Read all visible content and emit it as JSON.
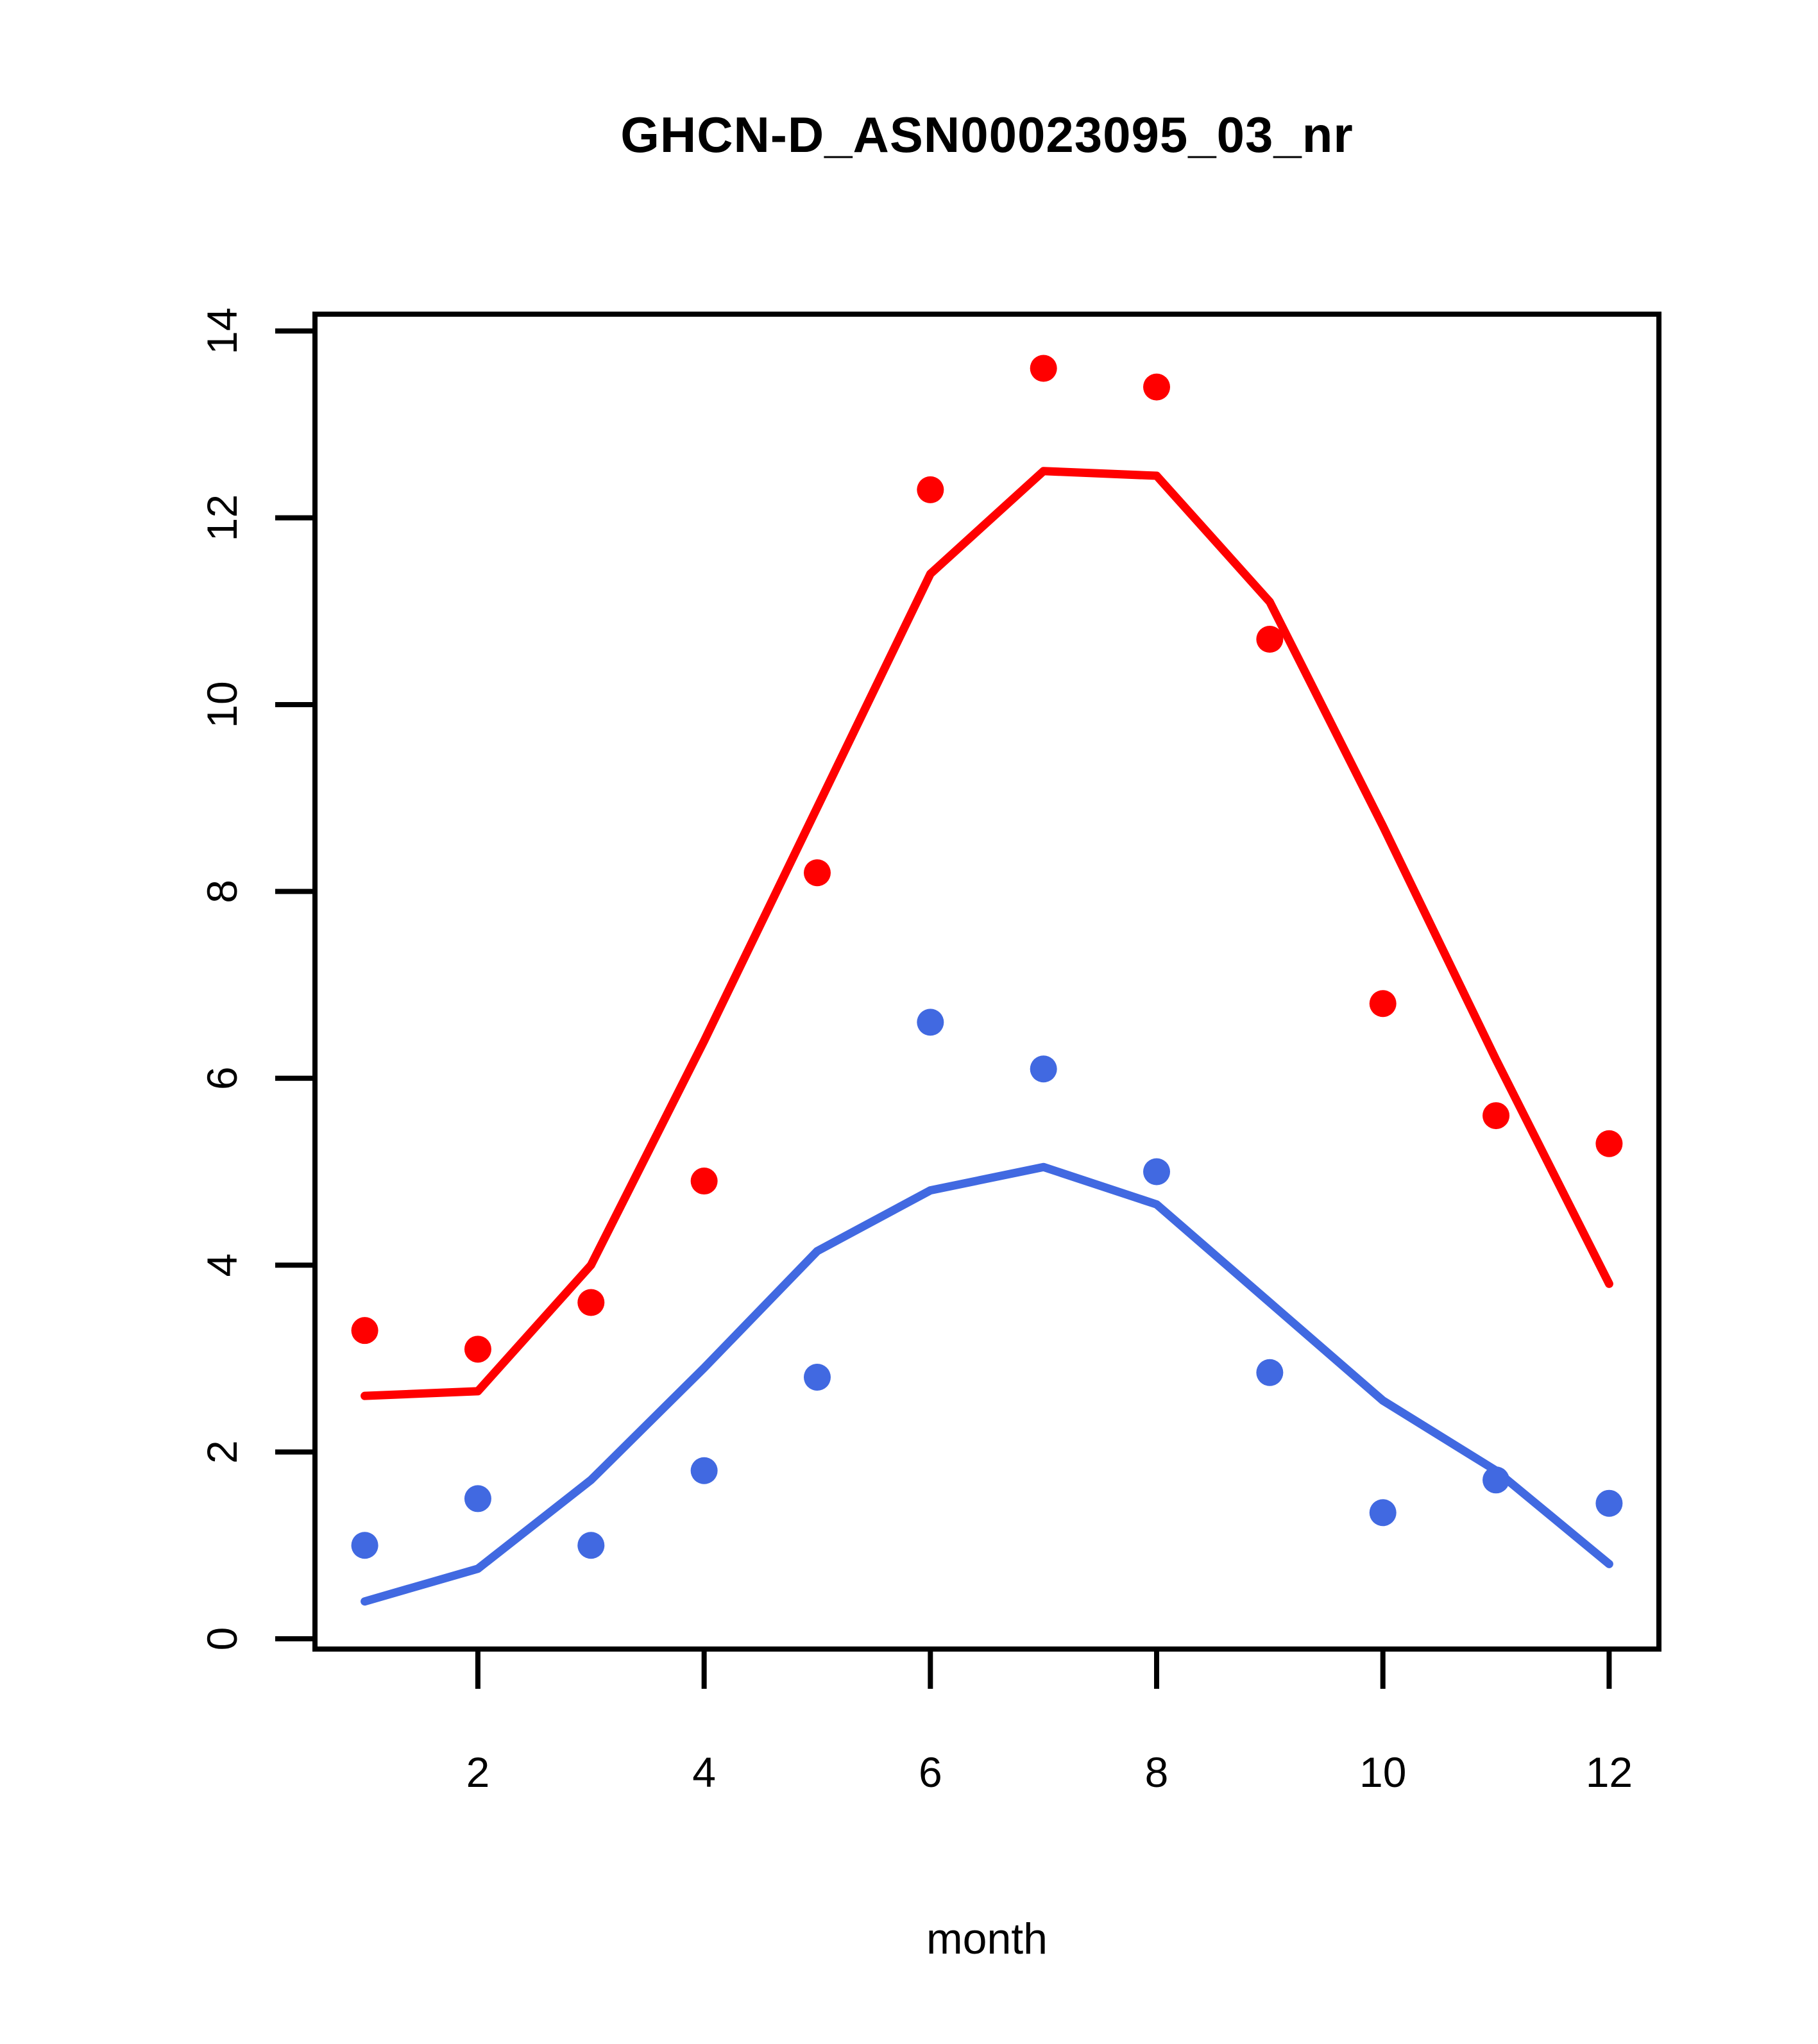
{
  "chart_data": {
    "type": "scatter",
    "title": "GHCN-D_ASN00023095_03_nr",
    "xlabel": "month",
    "ylabel": "",
    "x": [
      1,
      2,
      3,
      4,
      5,
      6,
      7,
      8,
      9,
      10,
      11,
      12
    ],
    "series": [
      {
        "name": "red points",
        "kind": "scatter",
        "color": "#ff0000",
        "values": [
          3.3,
          3.1,
          3.6,
          4.9,
          8.2,
          12.3,
          13.6,
          13.4,
          10.7,
          6.8,
          5.6,
          5.3
        ]
      },
      {
        "name": "red smooth line",
        "kind": "line",
        "color": "#ff0000",
        "values": [
          2.6,
          2.65,
          4.0,
          6.4,
          8.9,
          11.4,
          12.5,
          12.45,
          11.1,
          8.7,
          6.2,
          3.8
        ]
      },
      {
        "name": "blue points",
        "kind": "scatter",
        "color": "#4169e1",
        "values": [
          1.0,
          1.5,
          1.0,
          1.8,
          2.8,
          6.6,
          6.1,
          5.0,
          2.85,
          1.35,
          1.7,
          1.45
        ]
      },
      {
        "name": "blue smooth line",
        "kind": "line",
        "color": "#4169e1",
        "values": [
          0.4,
          0.75,
          1.7,
          2.9,
          4.15,
          4.8,
          5.05,
          4.65,
          3.6,
          2.55,
          1.8,
          0.8
        ]
      }
    ],
    "axes": {
      "x_ticks": [
        2,
        4,
        6,
        8,
        10,
        12
      ],
      "y_ticks": [
        0,
        2,
        4,
        6,
        8,
        10,
        12,
        14
      ],
      "x_range": [
        0.56,
        12.44
      ],
      "y_range": [
        -0.11,
        14.18
      ],
      "grid": false,
      "legend": "none"
    }
  }
}
